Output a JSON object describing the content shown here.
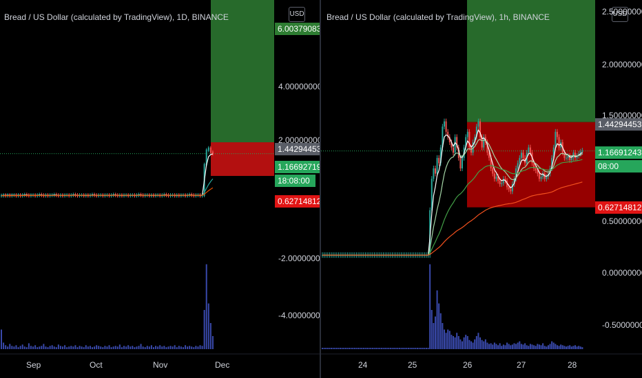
{
  "chart_data": [
    {
      "type": "candlestick",
      "title": "Bread / US Dollar (calculated by TradingView), 1D, BINANCE",
      "currency": "USD",
      "x_ticks": [
        "Sep",
        "Oct",
        "Nov",
        "Dec"
      ],
      "y_ticks": [
        "-4.00000000",
        "-2.00000000",
        "2.00000000",
        "4.00000000"
      ],
      "price_tags": {
        "target": "6.00379083",
        "upper": "1.44294453",
        "current": "1.16692719",
        "countdown": "18:08:00",
        "stop": "0.62714812"
      },
      "position": {
        "entry": 1.44294453,
        "target": 6.00379083,
        "stop": 0.62714812
      },
      "series": [
        {
          "values": [
            0.15,
            0.16,
            0.15,
            0.16,
            0.15,
            0.16,
            0.16,
            0.15,
            0.16,
            0.15,
            0.16,
            0.17,
            0.16,
            0.15,
            0.16,
            0.16,
            0.15,
            0.16,
            0.17,
            0.16,
            0.15,
            0.16,
            0.15,
            0.16,
            0.16,
            0.17,
            0.16,
            0.15,
            0.16,
            0.15,
            0.16,
            0.16,
            0.15,
            0.16,
            0.17,
            0.16,
            0.15,
            0.16,
            0.16,
            0.15,
            0.16,
            0.15,
            0.16,
            0.17,
            0.16,
            0.15,
            0.16,
            0.16,
            0.15,
            0.16,
            0.16,
            0.15,
            0.16,
            0.17,
            0.16,
            0.15,
            0.16,
            0.15,
            0.16,
            0.16,
            0.15,
            0.16,
            0.16,
            0.15,
            0.16,
            0.17,
            0.16,
            0.15,
            0.16,
            0.16,
            0.15,
            0.16,
            0.15,
            0.16,
            0.16,
            0.15,
            0.16,
            0.17,
            0.16,
            0.15,
            0.16,
            0.16,
            0.15,
            0.16,
            0.15,
            0.16,
            0.16,
            0.15,
            0.16,
            0.17,
            0.16,
            0.15,
            0.16,
            0.16,
            0.15,
            0.16,
            0.9,
            1.25,
            1.3,
            1.2,
            1.17
          ]
        }
      ],
      "volume": [
        30,
        10,
        6,
        4,
        8,
        5,
        4,
        6,
        3,
        5,
        7,
        4,
        3,
        9,
        5,
        4,
        6,
        3,
        4,
        5,
        8,
        4,
        3,
        5,
        6,
        4,
        3,
        7,
        5,
        4,
        6,
        3,
        4,
        5,
        4,
        6,
        3,
        5,
        4,
        3,
        6,
        4,
        5,
        3,
        4,
        6,
        5,
        4,
        3,
        5,
        4,
        6,
        3,
        4,
        5,
        4,
        7,
        3,
        5,
        4,
        6,
        4,
        5,
        3,
        4,
        5,
        8,
        4,
        3,
        5,
        4,
        6,
        3,
        5,
        4,
        6,
        4,
        5,
        3,
        4,
        5,
        4,
        6,
        3,
        5,
        4,
        3,
        6,
        4,
        5,
        4,
        3,
        5,
        4,
        6,
        5,
        60,
        130,
        70,
        40,
        20
      ]
    },
    {
      "type": "candlestick",
      "title": "Bread / US Dollar (calculated by TradingView), 1h, BINANCE",
      "currency": "USD",
      "x_ticks": [
        "24",
        "25",
        "26",
        "27",
        "28"
      ],
      "y_ticks": [
        "2.50000000",
        "2.00000000",
        "1.50000000",
        "0.50000000",
        "0.00000000",
        "-0.50000000"
      ],
      "price_tags": {
        "upper": "1.44294453",
        "current": "1.16691243",
        "countdown": "08:00",
        "stop": "0.62714812"
      },
      "position": {
        "entry": 1.44294453,
        "stop": 0.62714812
      },
      "series": [
        {
          "values": [
            0.17,
            0.17,
            0.17,
            0.17,
            0.17,
            0.17,
            0.17,
            0.17,
            0.17,
            0.17,
            0.17,
            0.17,
            0.17,
            0.17,
            0.17,
            0.17,
            0.17,
            0.17,
            0.17,
            0.17,
            0.17,
            0.17,
            0.17,
            0.17,
            0.17,
            0.17,
            0.17,
            0.17,
            0.17,
            0.17,
            0.17,
            0.17,
            0.17,
            0.17,
            0.17,
            0.17,
            0.17,
            0.17,
            0.17,
            0.17,
            0.17,
            0.17,
            0.17,
            0.17,
            0.17,
            0.17,
            0.17,
            0.17,
            0.17,
            0.17,
            0.17,
            0.17,
            0.17,
            0.17,
            0.17,
            0.17,
            0.17,
            0.17,
            0.17,
            0.17,
            0.6,
            0.9,
            1.0,
            0.95,
            1.1,
            1.05,
            1.2,
            1.4,
            1.45,
            1.35,
            1.3,
            1.25,
            1.2,
            1.15,
            1.3,
            1.2,
            1.1,
            1.0,
            1.1,
            1.2,
            1.3,
            1.35,
            1.2,
            1.15,
            1.25,
            1.3,
            1.4,
            1.45,
            1.3,
            1.2,
            1.3,
            1.25,
            1.15,
            1.1,
            1.0,
            0.95,
            0.9,
            0.92,
            0.88,
            0.85,
            0.86,
            0.9,
            0.88,
            0.82,
            0.8,
            0.78,
            0.85,
            0.9,
            1.0,
            1.05,
            1.1,
            1.15,
            1.1,
            1.05,
            1.15,
            1.2,
            1.15,
            1.05,
            1.0,
            0.98,
            0.95,
            0.9,
            0.92,
            0.95,
            0.9,
            0.92,
            0.95,
            1.0,
            1.1,
            1.2,
            1.35,
            1.3,
            1.2,
            1.25,
            1.15,
            1.1,
            1.1,
            1.12,
            1.08,
            1.1,
            1.15,
            1.1,
            1.12,
            1.14,
            1.16,
            1.17
          ]
        }
      ],
      "volume": [
        2,
        2,
        2,
        2,
        2,
        2,
        2,
        2,
        2,
        2,
        2,
        2,
        2,
        2,
        2,
        2,
        2,
        2,
        2,
        2,
        2,
        2,
        2,
        2,
        2,
        2,
        2,
        2,
        2,
        2,
        2,
        2,
        2,
        2,
        2,
        2,
        2,
        2,
        2,
        2,
        2,
        2,
        2,
        2,
        2,
        2,
        2,
        2,
        2,
        2,
        2,
        2,
        2,
        2,
        2,
        2,
        2,
        2,
        2,
        2,
        130,
        60,
        40,
        50,
        90,
        70,
        55,
        40,
        30,
        25,
        30,
        28,
        22,
        20,
        18,
        25,
        20,
        15,
        12,
        18,
        22,
        20,
        14,
        12,
        10,
        15,
        20,
        25,
        18,
        14,
        12,
        15,
        10,
        8,
        9,
        7,
        10,
        8,
        6,
        9,
        5,
        7,
        6,
        10,
        8,
        6,
        7,
        9,
        8,
        10,
        12,
        8,
        7,
        9,
        6,
        5,
        8,
        7,
        6,
        5,
        8,
        7,
        6,
        9,
        5,
        4,
        6,
        8,
        12,
        10,
        8,
        6,
        5,
        7,
        6,
        5,
        4,
        5,
        6,
        4,
        5,
        6,
        4,
        5,
        4,
        3
      ]
    }
  ]
}
